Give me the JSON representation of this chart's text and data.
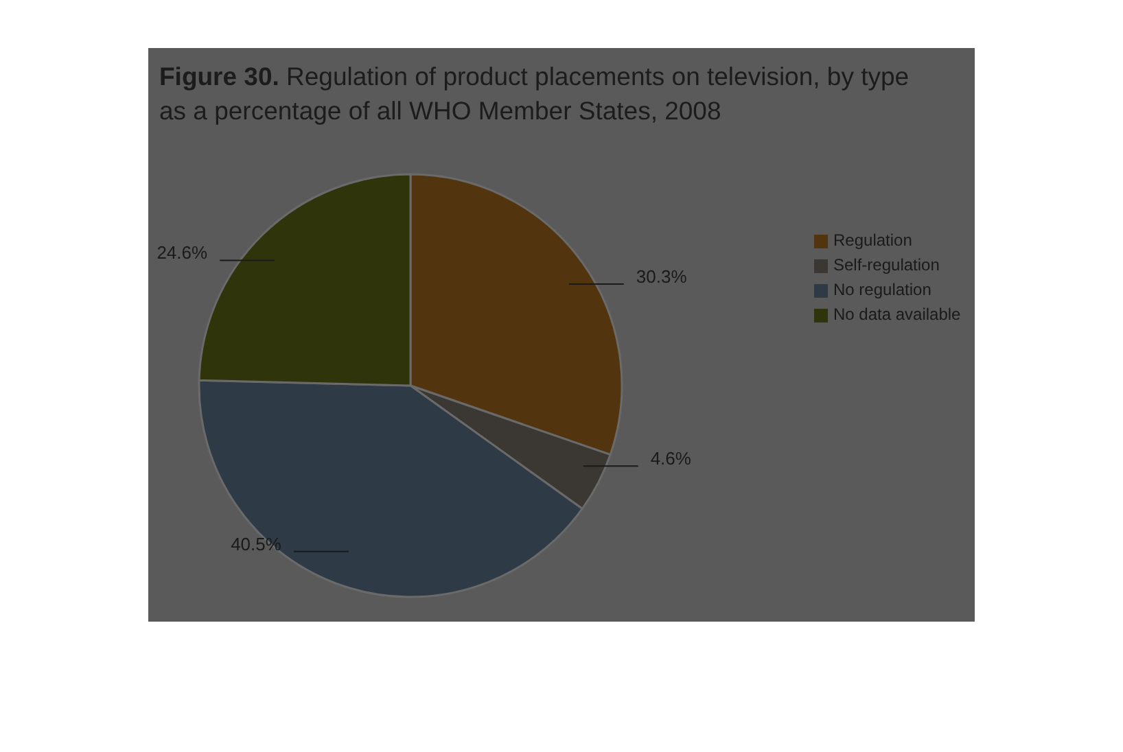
{
  "chart_data": {
    "type": "pie",
    "title": "Figure 30. Regulation of product placements on television, by type",
    "subtitle": "as a percentage of all WHO Member States, 2008",
    "categories": [
      "Regulation",
      "Self-regulation",
      "No regulation",
      "No data available"
    ],
    "values": [
      30.3,
      4.6,
      40.5,
      24.6
    ],
    "colors": [
      "#52340f",
      "#3b3732",
      "#2e3a45",
      "#30340a"
    ],
    "value_labels": [
      "30.3%",
      "4.6%",
      "40.5%",
      "24.6%"
    ],
    "legend": "right"
  }
}
